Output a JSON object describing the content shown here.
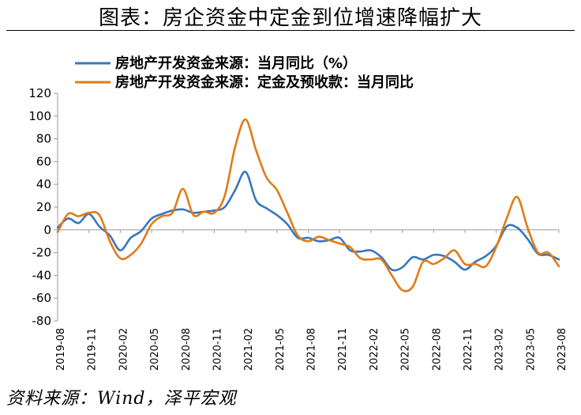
{
  "header": {
    "title": "图表：房企资金中定金到位增速降幅扩大"
  },
  "footer": {
    "source": "资料来源：Wind，泽平宏观"
  },
  "chart_data": {
    "type": "line",
    "title": "图表：房企资金中定金到位增速降幅扩大",
    "xlabel": "",
    "ylabel": "",
    "ylim": [
      -80,
      120
    ],
    "yticks": [
      -80,
      -60,
      -40,
      -20,
      0,
      20,
      40,
      60,
      80,
      100,
      120
    ],
    "grid": false,
    "legend_position": "top-left",
    "x_tick_labels": [
      "2019-08",
      "2019-11",
      "2020-02",
      "2020-05",
      "2020-08",
      "2020-11",
      "2021-02",
      "2021-05",
      "2021-08",
      "2021-11",
      "2022-02",
      "2022-05",
      "2022-08",
      "2022-11",
      "2023-02",
      "2023-05",
      "2023-08"
    ],
    "x": [
      "2019-08",
      "2019-09",
      "2019-10",
      "2019-11",
      "2019-12",
      "2020-01",
      "2020-02",
      "2020-03",
      "2020-04",
      "2020-05",
      "2020-06",
      "2020-07",
      "2020-08",
      "2020-09",
      "2020-10",
      "2020-11",
      "2020-12",
      "2021-01",
      "2021-02",
      "2021-03",
      "2021-04",
      "2021-05",
      "2021-06",
      "2021-07",
      "2021-08",
      "2021-09",
      "2021-10",
      "2021-11",
      "2021-12",
      "2022-01",
      "2022-02",
      "2022-03",
      "2022-04",
      "2022-05",
      "2022-06",
      "2022-07",
      "2022-08",
      "2022-09",
      "2022-10",
      "2022-11",
      "2022-12",
      "2023-01",
      "2023-02",
      "2023-03",
      "2023-04",
      "2023-05",
      "2023-06",
      "2023-07",
      "2023-08"
    ],
    "series": [
      {
        "name": "房地产开发资金来源：当月同比（%）",
        "color": "#3a77bd",
        "values": [
          2,
          10,
          6,
          14,
          3,
          -5,
          -18,
          -7,
          -1,
          10,
          14,
          17,
          18,
          15,
          16,
          17,
          20,
          35,
          51,
          26,
          19,
          13,
          5,
          -7,
          -7,
          -10,
          -9,
          -7,
          -18,
          -19,
          -18,
          -24,
          -35,
          -33,
          -24,
          -26,
          -22,
          -23,
          -28,
          -35,
          -28,
          -23,
          -14,
          3,
          2,
          -8,
          -21,
          -22,
          -26
        ]
      },
      {
        "name": "房地产开发资金来源：定金及预收款：当月同比",
        "color": "#e07b16",
        "values": [
          -2,
          14,
          12,
          15,
          13,
          -10,
          -25,
          -22,
          -12,
          5,
          12,
          15,
          36,
          13,
          16,
          15,
          30,
          73,
          97,
          70,
          46,
          35,
          15,
          -5,
          -10,
          -6,
          -9,
          -12,
          -15,
          -25,
          -26,
          -26,
          -40,
          -53,
          -50,
          -28,
          -30,
          -25,
          -18,
          -30,
          -30,
          -32,
          -15,
          10,
          29,
          2,
          -20,
          -20,
          -32
        ]
      }
    ]
  }
}
